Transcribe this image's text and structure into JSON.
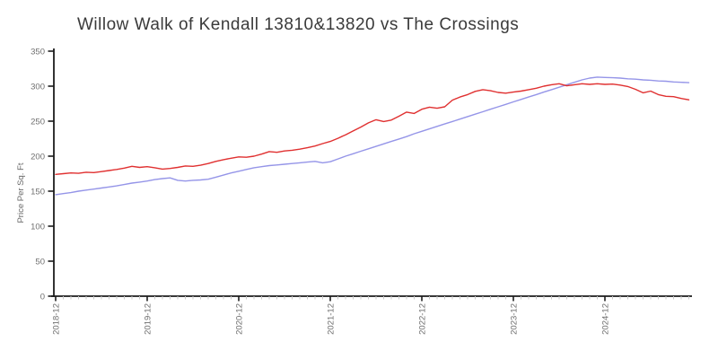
{
  "chart_data": {
    "type": "line",
    "title": "Willow Walk of Kendall 13810&13820 vs The Crossings",
    "ylabel": "Price Per Sq. Ft",
    "xlabel": "",
    "ylim": [
      0,
      350
    ],
    "yticks": [
      0,
      50,
      100,
      150,
      200,
      250,
      300,
      350
    ],
    "x_start_month": "2018-12",
    "x_end_month": "2025-11",
    "months_total": 84,
    "minor_tick_every_months": 1,
    "grid": false,
    "legend_position": "none",
    "x_major_ticks": [
      {
        "label": "2018-12",
        "month_index": 0
      },
      {
        "label": "2019-12",
        "month_index": 12
      },
      {
        "label": "2020-12",
        "month_index": 24
      },
      {
        "label": "2021-12",
        "month_index": 36
      },
      {
        "label": "2022-12",
        "month_index": 48
      },
      {
        "label": "2023-12",
        "month_index": 60
      },
      {
        "label": "2024-12",
        "month_index": 72
      }
    ],
    "series": [
      {
        "name": "The Crossings",
        "color": "#9595e8",
        "values": [
          145,
          146.5,
          148,
          150,
          151.5,
          153,
          154.5,
          156,
          157.5,
          159.5,
          161.5,
          163,
          164.5,
          166.5,
          168,
          169,
          165.5,
          164.5,
          165.5,
          166,
          167,
          170,
          173,
          176,
          178.5,
          181,
          183.5,
          185,
          186.5,
          187.5,
          188.5,
          189.5,
          190.5,
          191.5,
          192.5,
          190.5,
          192,
          196,
          200,
          203.5,
          207,
          210.5,
          214,
          217.5,
          221,
          224.5,
          228,
          232,
          235.5,
          239,
          242.5,
          246,
          249.5,
          253,
          256.5,
          260,
          263.5,
          267,
          270.5,
          274,
          277.5,
          281,
          284.5,
          288,
          291.5,
          295,
          298.5,
          302,
          305.5,
          309,
          311.5,
          313,
          312.5,
          312,
          311.5,
          310.5,
          310,
          309,
          308.5,
          307.5,
          307,
          306,
          305.5,
          305
        ]
      },
      {
        "name": "Willow Walk of Kendall 13810&13820",
        "color": "#e03030",
        "values": [
          174,
          175,
          176,
          175.5,
          177,
          176.5,
          178,
          179.5,
          181,
          183,
          185.5,
          184,
          185,
          183.5,
          181.5,
          182.5,
          184,
          186,
          185.5,
          187,
          189.5,
          192.5,
          195,
          197,
          199,
          198.5,
          200,
          203,
          206.5,
          205.5,
          207.5,
          208.5,
          210,
          212,
          214.5,
          218,
          221,
          225.5,
          230.5,
          236,
          241.5,
          247.5,
          252,
          249.5,
          251.5,
          257,
          263,
          261,
          267,
          270,
          268.5,
          270.5,
          280,
          284.5,
          288,
          292.5,
          295,
          293.5,
          291,
          290,
          291.5,
          293,
          295,
          297,
          300,
          302,
          303.5,
          300.5,
          302,
          303.5,
          302.5,
          303.5,
          302.5,
          303,
          301.5,
          299.5,
          295.5,
          290.5,
          293,
          288,
          285.5,
          285,
          282.5,
          280.5
        ]
      }
    ]
  },
  "colors": {
    "axis": "#1c1c1c",
    "major_tick": "#1c1c1c",
    "minor_tick": "#c9c9c9",
    "tick_label": "#6f6f6f",
    "axis_title": "#666666",
    "title": "#3a3a3a",
    "background": "#ffffff"
  }
}
